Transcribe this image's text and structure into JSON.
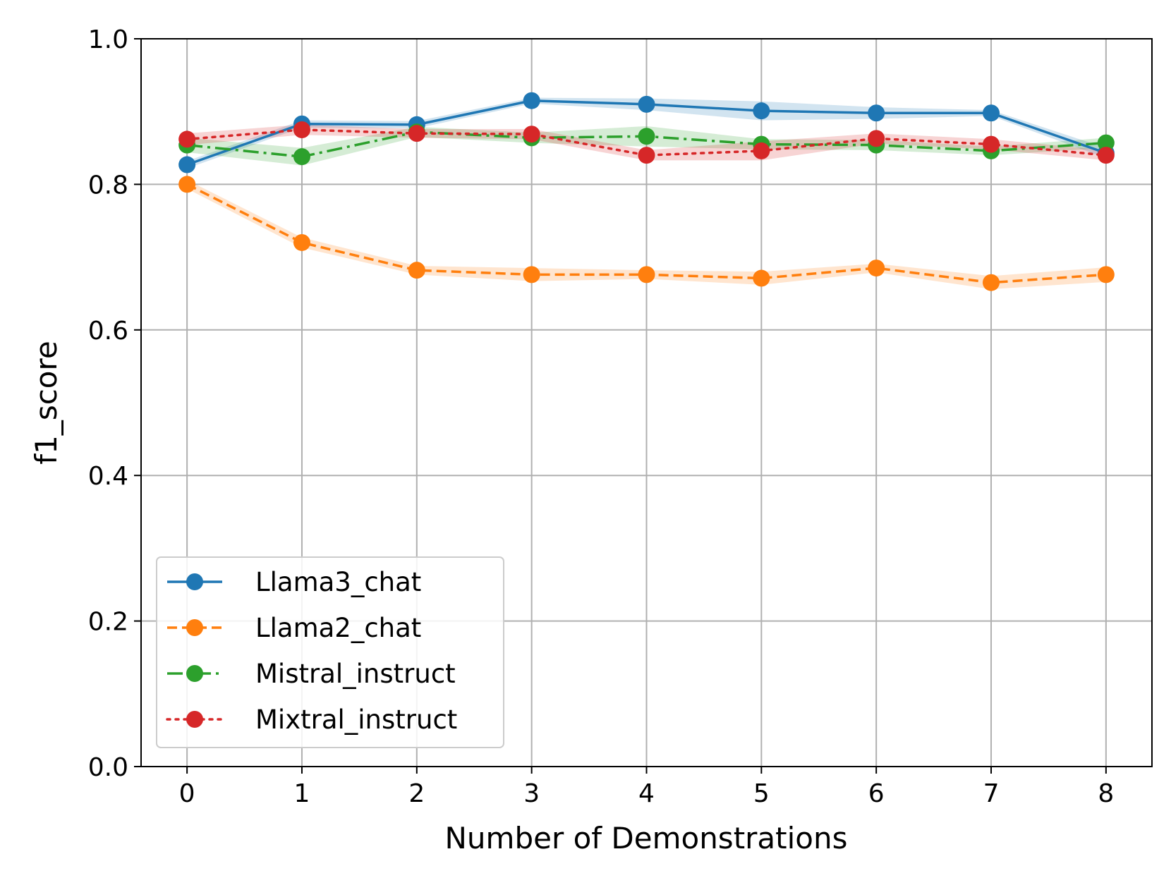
{
  "chart_data": {
    "type": "line",
    "title": "",
    "xlabel": "Number of Demonstrations",
    "ylabel": "f1_score",
    "x": [
      0,
      1,
      2,
      3,
      4,
      5,
      6,
      7,
      8
    ],
    "xlim": [
      -0.4,
      8.4
    ],
    "ylim": [
      0.0,
      1.0
    ],
    "xticks": [
      0,
      1,
      2,
      3,
      4,
      5,
      6,
      7,
      8
    ],
    "yticks": [
      "0.0",
      "0.2",
      "0.4",
      "0.6",
      "0.8",
      "1.0"
    ],
    "grid": true,
    "legend_position": "lower-left",
    "series": [
      {
        "name": "Llama3_chat",
        "color": "#1f77b4",
        "linestyle": "solid",
        "values": [
          0.827,
          0.883,
          0.882,
          0.915,
          0.91,
          0.901,
          0.898,
          0.898,
          0.843
        ],
        "lower": [
          0.822,
          0.878,
          0.877,
          0.911,
          0.902,
          0.888,
          0.89,
          0.894,
          0.836
        ],
        "upper": [
          0.832,
          0.888,
          0.887,
          0.919,
          0.918,
          0.914,
          0.906,
          0.902,
          0.85
        ]
      },
      {
        "name": "Llama2_chat",
        "color": "#ff7f0e",
        "linestyle": "dashed",
        "values": [
          0.8,
          0.72,
          0.682,
          0.676,
          0.676,
          0.671,
          0.685,
          0.665,
          0.676
        ],
        "lower": [
          0.794,
          0.713,
          0.676,
          0.667,
          0.67,
          0.662,
          0.679,
          0.656,
          0.666
        ],
        "upper": [
          0.806,
          0.727,
          0.688,
          0.685,
          0.682,
          0.68,
          0.691,
          0.674,
          0.686
        ]
      },
      {
        "name": "Mistral_instruct",
        "color": "#2ca02c",
        "linestyle": "dashdot",
        "values": [
          0.854,
          0.838,
          0.872,
          0.864,
          0.866,
          0.855,
          0.854,
          0.846,
          0.857
        ],
        "lower": [
          0.844,
          0.826,
          0.865,
          0.857,
          0.852,
          0.848,
          0.847,
          0.84,
          0.85
        ],
        "upper": [
          0.864,
          0.85,
          0.879,
          0.871,
          0.88,
          0.862,
          0.861,
          0.852,
          0.864
        ]
      },
      {
        "name": "Mixtral_instruct",
        "color": "#d62728",
        "linestyle": "dotted",
        "values": [
          0.862,
          0.875,
          0.87,
          0.869,
          0.84,
          0.846,
          0.863,
          0.855,
          0.84
        ],
        "lower": [
          0.854,
          0.868,
          0.864,
          0.862,
          0.833,
          0.833,
          0.856,
          0.848,
          0.833
        ],
        "upper": [
          0.87,
          0.882,
          0.876,
          0.876,
          0.847,
          0.859,
          0.87,
          0.862,
          0.847
        ]
      }
    ]
  }
}
